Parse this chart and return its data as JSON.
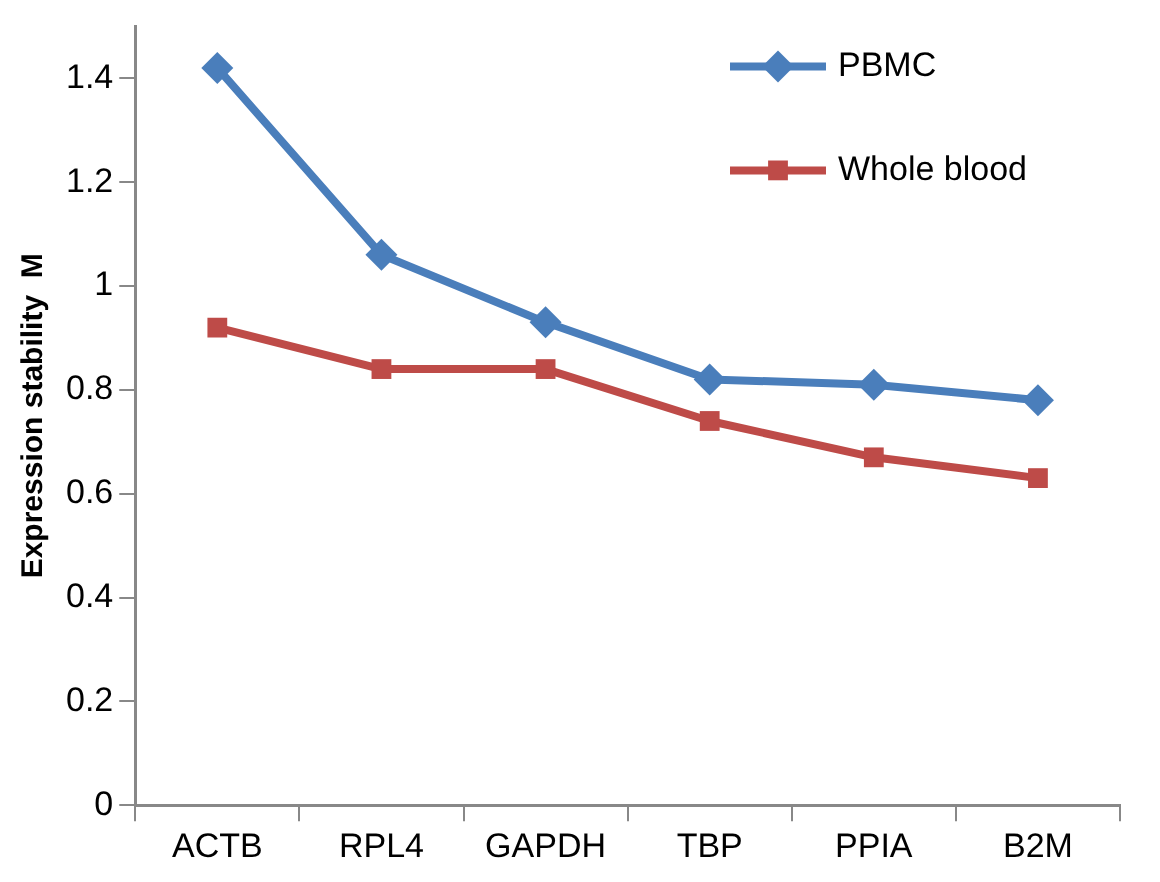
{
  "chart_data": {
    "type": "line",
    "ylabel": "Expression stability  M",
    "categories": [
      "ACTB",
      "RPL4",
      "GAPDH",
      "TBP",
      "PPIA",
      "B2M"
    ],
    "series": [
      {
        "name": "PBMC",
        "color": "#4a7ebb",
        "marker": "diamond",
        "values": [
          1.42,
          1.06,
          0.93,
          0.82,
          0.81,
          0.78
        ]
      },
      {
        "name": "Whole blood",
        "color": "#be4b48",
        "marker": "square",
        "values": [
          0.92,
          0.84,
          0.84,
          0.74,
          0.67,
          0.63
        ]
      }
    ],
    "ylim": [
      0,
      1.5
    ],
    "yticks": [
      0,
      0.2,
      0.4,
      0.6,
      0.8,
      1,
      1.2,
      1.4
    ],
    "grid": false,
    "legend": "top right"
  }
}
